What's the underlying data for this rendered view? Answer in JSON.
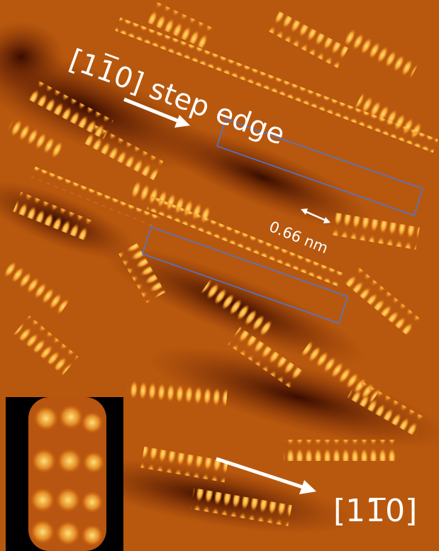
{
  "labels": {
    "step_edge": "[11̅0] step edge",
    "spacing": "0.66 nm",
    "direction": "[11̅0]"
  }
}
